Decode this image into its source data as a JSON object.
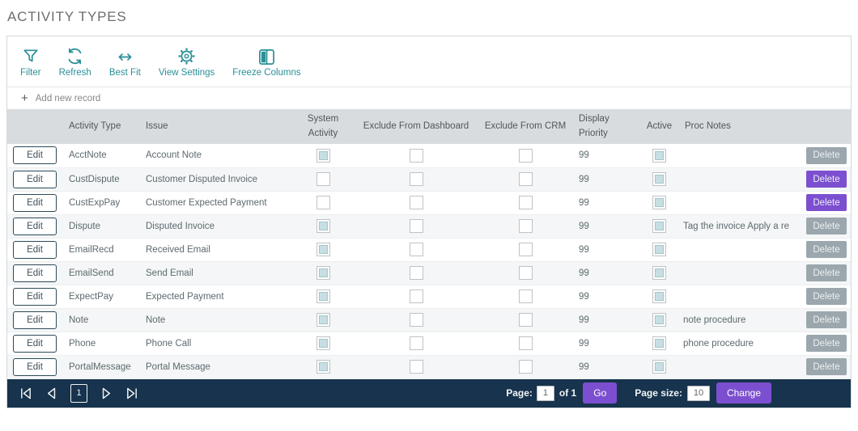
{
  "title": "ACTIVITY TYPES",
  "colors": {
    "accent_teal": "#2a8f96",
    "pager_navy": "#17334d",
    "button_purple": "#7c4fd0",
    "button_gray": "#9ba7ad",
    "header_bg": "#d9dcde",
    "row_alt_bg": "#f4f6f7",
    "checkbox_fill": "#c7dfe3"
  },
  "toolbar": {
    "items": [
      {
        "icon": "filter-icon",
        "label": "Filter"
      },
      {
        "icon": "refresh-icon",
        "label": "Refresh"
      },
      {
        "icon": "best-fit-icon",
        "label": "Best Fit"
      },
      {
        "icon": "view-settings-icon",
        "label": "View Settings"
      },
      {
        "icon": "freeze-columns-icon",
        "label": "Freeze Columns"
      }
    ]
  },
  "add_new_record": {
    "icon": "plus-icon",
    "label": "Add new record"
  },
  "table": {
    "columns": [
      "",
      "Activity Type",
      "Issue",
      "System Activity",
      "Exclude From Dashboard",
      "Exclude From CRM",
      "Display Priority",
      "Active",
      "Proc Notes",
      ""
    ],
    "edit_label": "Edit",
    "delete_label": "Delete",
    "rows": [
      {
        "activity_type": "AcctNote",
        "issue": "Account Note",
        "system_activity": true,
        "exclude_from_dashboard": false,
        "exclude_from_crm": false,
        "display_priority": "99",
        "active": true,
        "proc_notes": "",
        "delete_variant": "gray"
      },
      {
        "activity_type": "CustDispute",
        "issue": "Customer Disputed Invoice",
        "system_activity": false,
        "exclude_from_dashboard": false,
        "exclude_from_crm": false,
        "display_priority": "99",
        "active": true,
        "proc_notes": "",
        "delete_variant": "purple"
      },
      {
        "activity_type": "CustExpPay",
        "issue": "Customer Expected Payment",
        "system_activity": false,
        "exclude_from_dashboard": false,
        "exclude_from_crm": false,
        "display_priority": "99",
        "active": true,
        "proc_notes": "",
        "delete_variant": "purple"
      },
      {
        "activity_type": "Dispute",
        "issue": "Disputed Invoice",
        "system_activity": true,
        "exclude_from_dashboard": false,
        "exclude_from_crm": false,
        "display_priority": "99",
        "active": true,
        "proc_notes": "Tag the invoice Apply a re",
        "delete_variant": "gray"
      },
      {
        "activity_type": "EmailRecd",
        "issue": "Received Email",
        "system_activity": true,
        "exclude_from_dashboard": false,
        "exclude_from_crm": false,
        "display_priority": "99",
        "active": true,
        "proc_notes": "",
        "delete_variant": "gray"
      },
      {
        "activity_type": "EmailSend",
        "issue": "Send Email",
        "system_activity": true,
        "exclude_from_dashboard": false,
        "exclude_from_crm": false,
        "display_priority": "99",
        "active": true,
        "proc_notes": "",
        "delete_variant": "gray"
      },
      {
        "activity_type": "ExpectPay",
        "issue": "Expected Payment",
        "system_activity": true,
        "exclude_from_dashboard": false,
        "exclude_from_crm": false,
        "display_priority": "99",
        "active": true,
        "proc_notes": "",
        "delete_variant": "gray"
      },
      {
        "activity_type": "Note",
        "issue": "Note",
        "system_activity": true,
        "exclude_from_dashboard": false,
        "exclude_from_crm": false,
        "display_priority": "99",
        "active": true,
        "proc_notes": "note procedure",
        "delete_variant": "gray"
      },
      {
        "activity_type": "Phone",
        "issue": "Phone Call",
        "system_activity": true,
        "exclude_from_dashboard": false,
        "exclude_from_crm": false,
        "display_priority": "99",
        "active": true,
        "proc_notes": "phone procedure",
        "delete_variant": "gray"
      },
      {
        "activity_type": "PortalMessage",
        "issue": "Portal Message",
        "system_activity": true,
        "exclude_from_dashboard": false,
        "exclude_from_crm": false,
        "display_priority": "99",
        "active": true,
        "proc_notes": "",
        "delete_variant": "gray"
      }
    ]
  },
  "pager": {
    "nav_icons": [
      "first-page-icon",
      "prev-page-icon",
      "next-page-icon",
      "last-page-icon"
    ],
    "current_page": "1",
    "page_label": "Page:",
    "page_value": "1",
    "of_label": "of 1",
    "go_label": "Go",
    "page_size_label": "Page size:",
    "page_size_value": "10",
    "change_label": "Change"
  }
}
